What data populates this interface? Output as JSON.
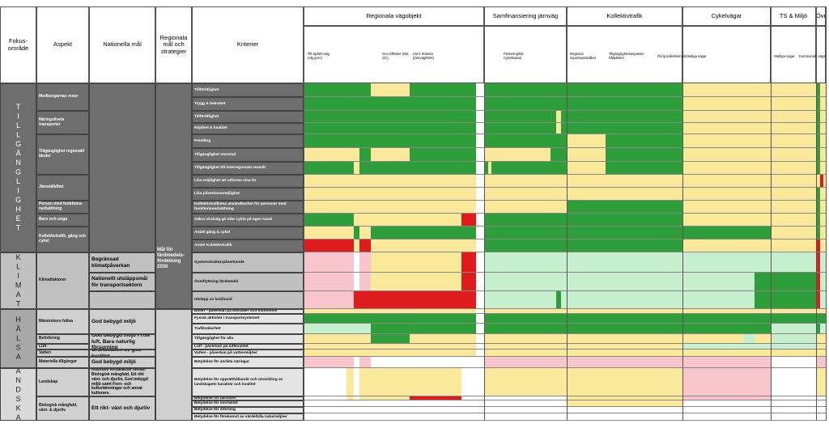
{
  "header": {
    "fokus": "Fokus-område",
    "aspekt": "Aspekt",
    "nationella": "Nationella mål",
    "regionala": "Regionala mål och strategier",
    "kriterier": "Kriterier"
  },
  "groups": [
    "Regionala vägobjekt",
    "Samfinansiering järnväg",
    "Kollektivtrafik",
    "Cykelvägar",
    "TS & Miljö",
    "Övr"
  ],
  "subcolumns": [
    "Till Spårfri-väg (obj.gren)",
    "Gen Effekter (inkl. GC)",
    "Vid 2 Sträcka (järnväg/REK)",
    "Parkering/Bil- Cykelkantat",
    "Regional superbussstråket",
    "Tillgänglighetsanpassning hållplatser",
    "Övrig kollektivtrafik",
    "Statliga vägar",
    "Statliga vägar",
    "Kommunala vägar"
  ],
  "focus_areas": [
    "TILLGÄNGLIGHET",
    "KLIMAT",
    "HÄLSA",
    "LANDSKAP"
  ],
  "aspects": [
    "Medborgarnas resor",
    "Näringslivets transporter",
    "Tillgänglighet regionalt/ länder",
    "Jämställdhet",
    "Person med funktions-nedsättning",
    "Barn och unga",
    "Kollektivtrafik, gång och cykel",
    "Klimatfaktorer",
    "Människors hälsa",
    "Befolkning",
    "Luft",
    "Vatten",
    "Materiella tillgångar",
    "Landskap",
    "Biologisk mångfald, växt- & djurliv"
  ],
  "national_goals": [
    "Begränsad klimatpåverkan",
    "Nationellt utsläppsmål för transportsektorn",
    "God bebygd miljö",
    "God bebygd miljö Frisk luft, Bara naturlig försurning",
    "Grundvatten av god kvalitet",
    "God bebygd miljö",
    "Inbördes förhållande mellan Biologisk mångfald, Ett rikt växt- och djurliv, God bebygd miljö samt Forn- och kulturlämningar och annat kulturarv.",
    "Ett rikt- växt och djurliv"
  ],
  "regional_goals": [
    "Mål för färdmedels-fördelning 2030"
  ],
  "criteria": [
    "Tillförlitlighet",
    "Trygg & bekvämt",
    "Tillförlitlighet",
    "Nöjdhet & kvalitet",
    "Pendling",
    "Tillgänglighet storstad",
    "Tillgänglighet till interregionala resmål",
    "Lika möjlighet att utforma sina liv",
    "Lika påverkansmöjlighet",
    "Kollektivtrafikens användbarhet för personer med funktionsnedsättning",
    "Säkra skolväg gå eller cykla på egen hand",
    "Andel gång & cykel",
    "Andel Kollektivtrafik",
    "Systemstrukturpåverkande",
    "Överflyttning färdmedel",
    "Utsläpp av koldioxid",
    "Buller - påverkan på bostäder och människor",
    "Fysisk aktivitet i transportsystemet",
    "Trafiksäkerhet",
    "Tillgänglighet för alla",
    "Luft - påverkan på luftkvalitet",
    "Vatten - påverkan på vattenmiljöer",
    "Betydelse för anrikta näringar",
    "Betydelse för upprätthållande och utveckling av landskapets karaktär och kvalitet",
    "Betydelse för barriärer",
    "Betydelse för mortalitet",
    "Betydelse för störning",
    "Betydelse för förekomst av värdefulla naturmiljöer"
  ]
}
